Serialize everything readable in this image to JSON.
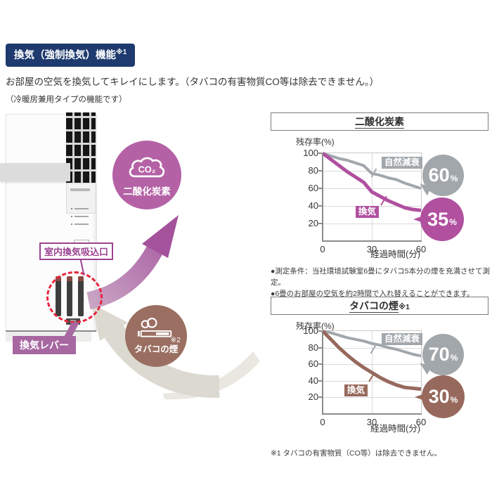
{
  "banner": {
    "label": "換気（強制換気）機能",
    "sup": "※1",
    "bg_color": "#1e3a6e"
  },
  "intro": {
    "line1": "お部屋の空気を換気してキレイにします。（タバコの有害物質CO等は除去できません。）",
    "line2": "（冷暖房兼用タイプの機能です）"
  },
  "illustration": {
    "intake_label": "室内換気吸込口",
    "lever_label": "換気レバー",
    "co2_badge": {
      "gas": "CO₂",
      "label": "二酸化炭素",
      "color": "#b561a6"
    },
    "smoke_badge": {
      "ref": "※2",
      "label": "タバコの煙",
      "color": "#9a6f62"
    },
    "purple_accent": "#9c4292",
    "gray_arrow_color": "#dcd9d1",
    "dashed_ring_color": "#e8243c"
  },
  "notes": {
    "measurement": "●測定条件：当社環境試験室6畳にタバコ5本分の煙を充満させて測定。",
    "replacement": "●6畳のお部屋の空気を約2時間で入れ替えることができます。",
    "footnote": "※1 タバコの有害物質（CO等）は除去できません。"
  },
  "chart_data": [
    {
      "type": "line",
      "title": "二酸化炭素",
      "title_suffix": "",
      "ylabel": "残存率(%)",
      "xlabel": "経過時間(分)",
      "xlim": [
        0,
        60
      ],
      "ylim": [
        0,
        100
      ],
      "x_ticks": [
        0,
        30,
        60
      ],
      "y_ticks": [
        100,
        80,
        60,
        40,
        20
      ],
      "grid": true,
      "legend_position": "inline-labels",
      "series": [
        {
          "name": "自然減衰",
          "color": "#a2a7ab",
          "end_value": "60",
          "end_unit": "%",
          "points": [
            [
              0,
              100
            ],
            [
              5,
              97
            ],
            [
              10,
              94
            ],
            [
              15,
              92
            ],
            [
              20,
              89
            ],
            [
              25,
              86
            ],
            [
              30,
              77
            ],
            [
              35,
              75
            ],
            [
              40,
              72
            ],
            [
              45,
              70
            ],
            [
              50,
              66
            ],
            [
              55,
              63
            ],
            [
              60,
              60
            ]
          ]
        },
        {
          "name": "換気",
          "color": "#b0509f",
          "end_value": "35",
          "end_unit": "%",
          "points": [
            [
              0,
              100
            ],
            [
              5,
              93
            ],
            [
              10,
              86
            ],
            [
              15,
              79
            ],
            [
              20,
              73
            ],
            [
              25,
              67
            ],
            [
              30,
              56
            ],
            [
              35,
              51
            ],
            [
              40,
              46
            ],
            [
              45,
              42
            ],
            [
              50,
              38
            ],
            [
              55,
              36
            ],
            [
              60,
              35
            ]
          ]
        }
      ]
    },
    {
      "type": "line",
      "title": "タバコの煙",
      "title_suffix": "※1",
      "ylabel": "残存率(%)",
      "xlabel": "経過時間(分)",
      "xlim": [
        0,
        60
      ],
      "ylim": [
        0,
        100
      ],
      "x_ticks": [
        0,
        30,
        60
      ],
      "y_ticks": [
        100,
        80,
        60,
        40,
        20
      ],
      "grid": true,
      "legend_position": "inline-labels",
      "series": [
        {
          "name": "自然減衰",
          "color": "#a2a7ab",
          "end_value": "70",
          "end_unit": "%",
          "points": [
            [
              0,
              100
            ],
            [
              5,
              98
            ],
            [
              10,
              95
            ],
            [
              15,
              92
            ],
            [
              20,
              90
            ],
            [
              25,
              88
            ],
            [
              30,
              85
            ],
            [
              35,
              83
            ],
            [
              40,
              80
            ],
            [
              45,
              78
            ],
            [
              50,
              75
            ],
            [
              55,
              72
            ],
            [
              60,
              70
            ]
          ]
        },
        {
          "name": "換気",
          "color": "#97695c",
          "end_value": "30",
          "end_unit": "%",
          "points": [
            [
              0,
              100
            ],
            [
              5,
              90
            ],
            [
              10,
              80
            ],
            [
              15,
              71
            ],
            [
              20,
              63
            ],
            [
              25,
              56
            ],
            [
              30,
              50
            ],
            [
              35,
              44
            ],
            [
              40,
              39
            ],
            [
              45,
              35
            ],
            [
              50,
              32
            ],
            [
              55,
              31
            ],
            [
              60,
              30
            ]
          ]
        }
      ]
    }
  ]
}
